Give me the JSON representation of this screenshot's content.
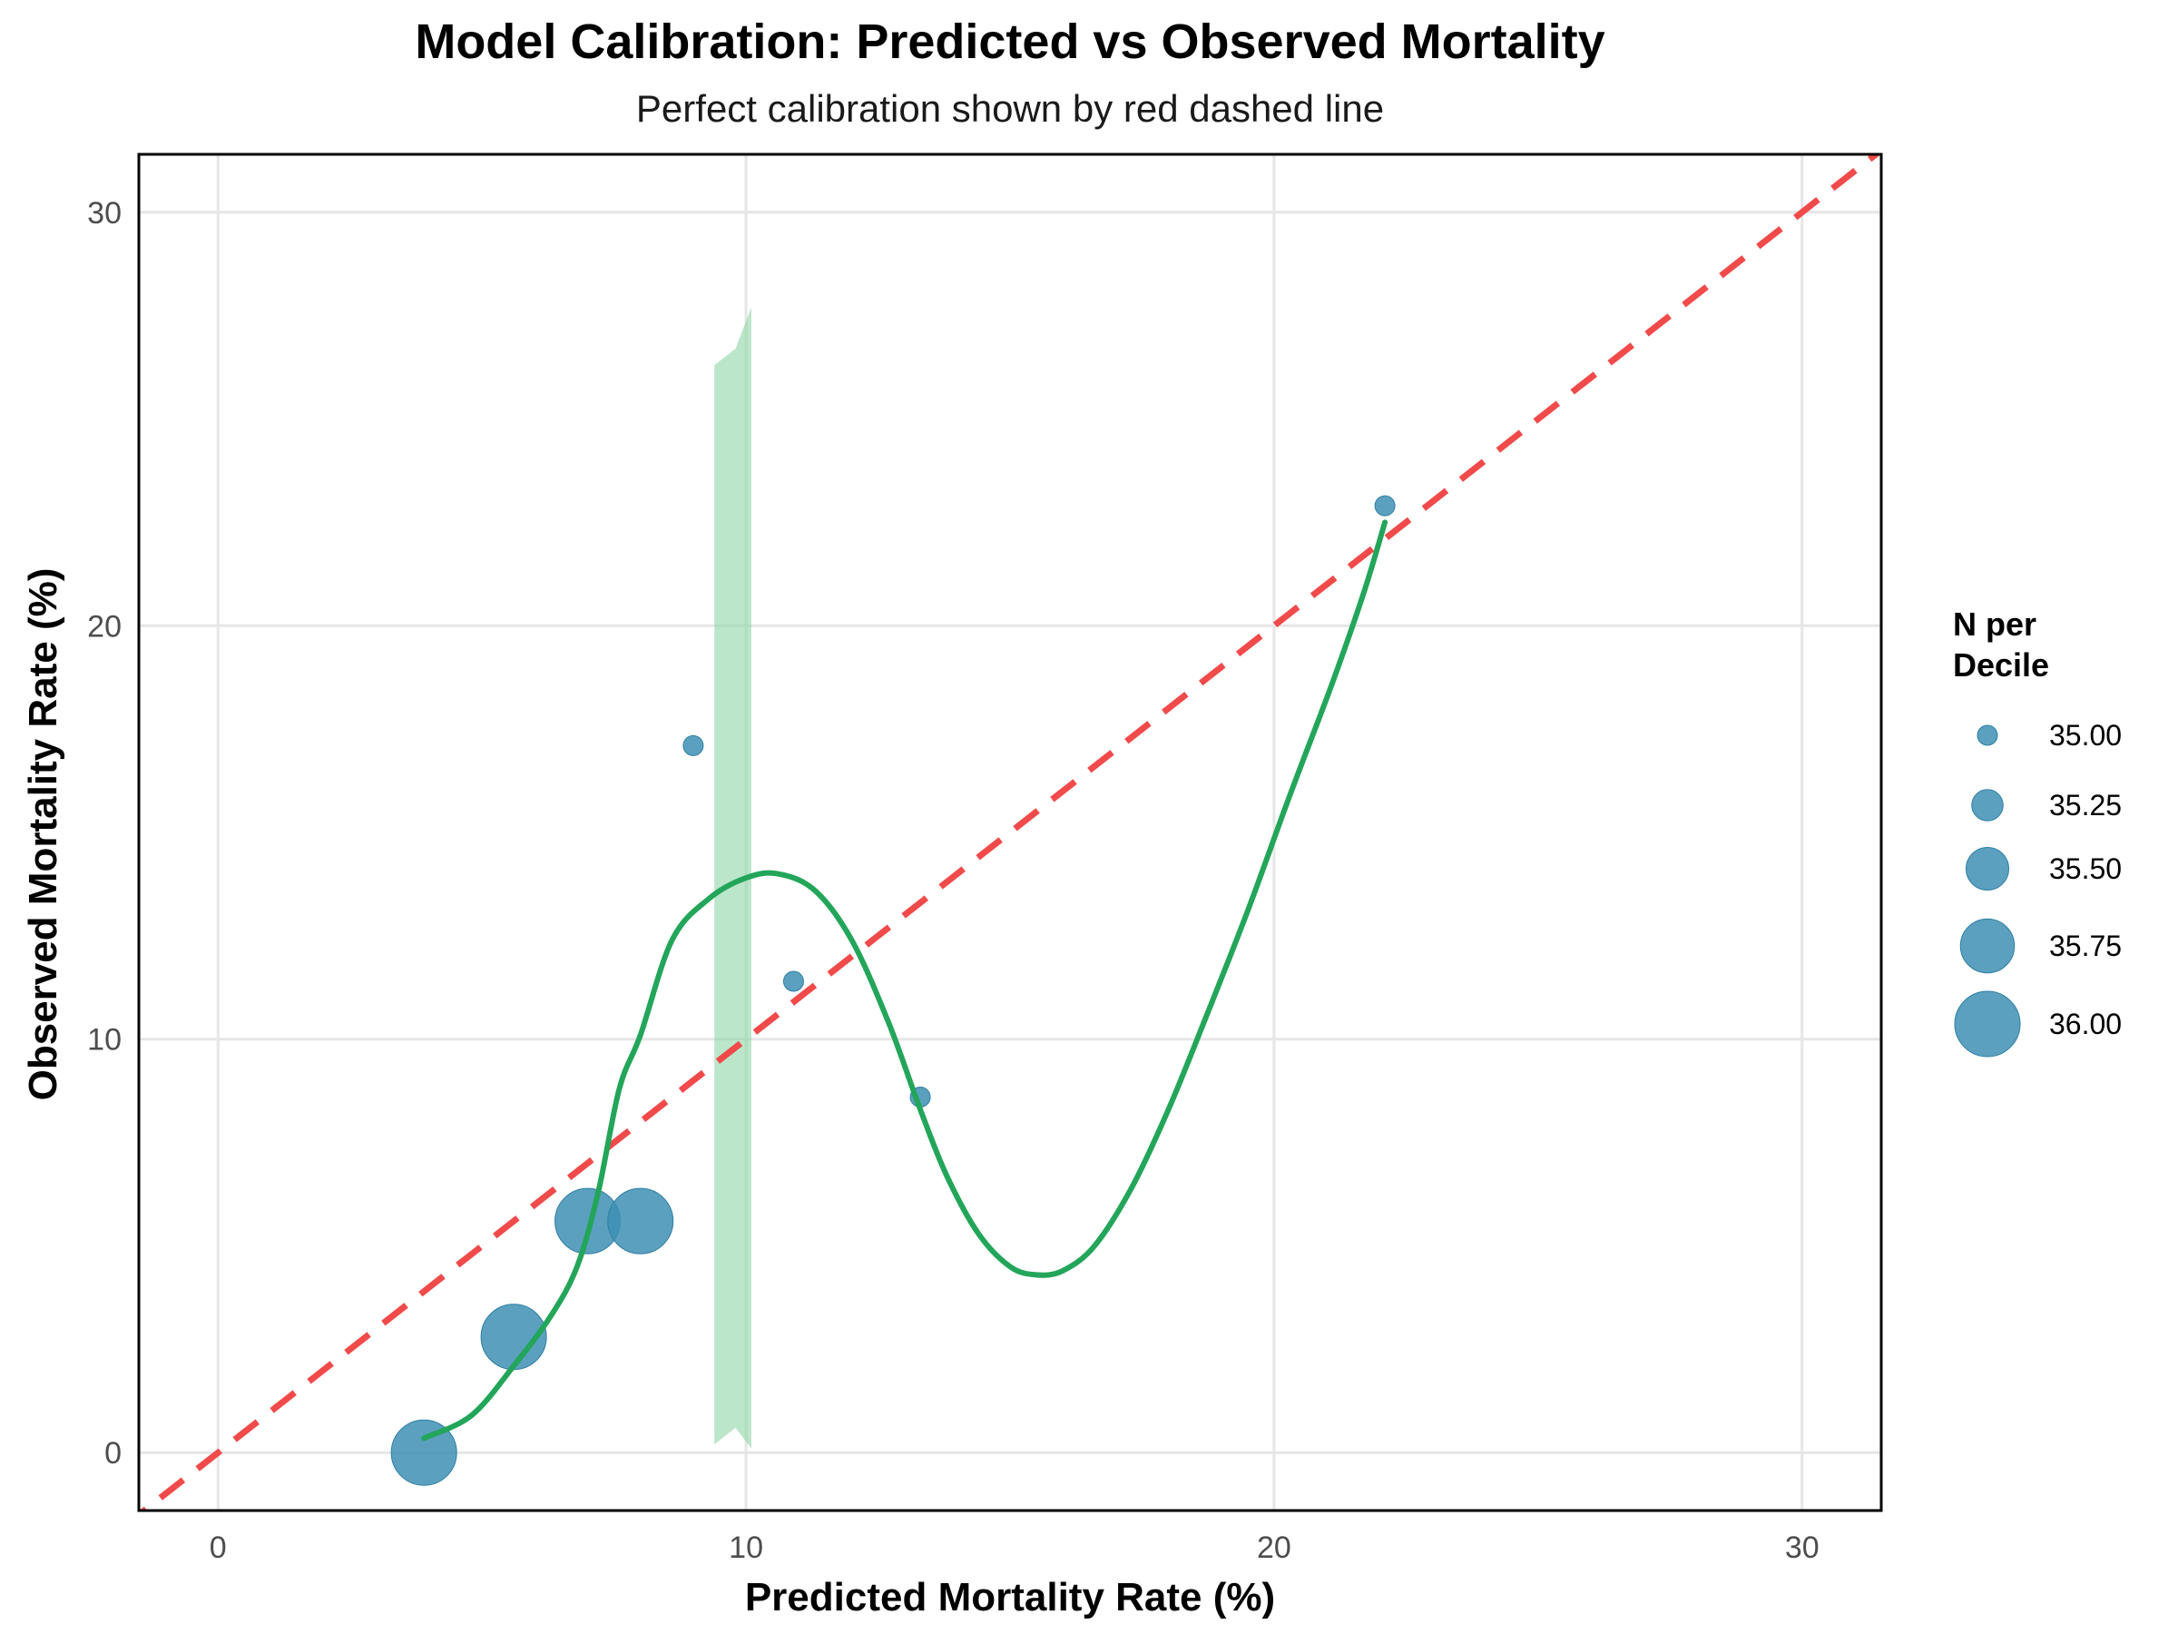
{
  "chart_data": {
    "type": "scatter",
    "title": "Model Calibration: Predicted vs Observed Mortality",
    "subtitle": "Perfect calibration shown by red dashed line",
    "xlabel": "Predicted Mortality Rate (%)",
    "ylabel": "Observed Mortality Rate (%)",
    "xlim": [
      -1.5,
      31.5
    ],
    "ylim": [
      -1.4,
      31.4
    ],
    "x_ticks": [
      0,
      10,
      20,
      30
    ],
    "y_ticks": [
      0,
      10,
      20,
      30
    ],
    "grid": true,
    "points": [
      {
        "x": 3.9,
        "y": 0.0,
        "n": 36
      },
      {
        "x": 5.6,
        "y": 2.8,
        "n": 36
      },
      {
        "x": 7.0,
        "y": 5.6,
        "n": 36
      },
      {
        "x": 8.0,
        "y": 5.6,
        "n": 36
      },
      {
        "x": 9.0,
        "y": 17.1,
        "n": 35
      },
      {
        "x": 10.9,
        "y": 11.4,
        "n": 35
      },
      {
        "x": 13.3,
        "y": 8.6,
        "n": 35
      },
      {
        "x": 22.1,
        "y": 22.9,
        "n": 35
      }
    ],
    "reference_line": {
      "type": "identity",
      "color": "#f04a4a",
      "style": "dashed"
    },
    "smooth_curve": {
      "color": "#23a55a",
      "points": [
        [
          3.9,
          0.35
        ],
        [
          4.8,
          0.9
        ],
        [
          5.6,
          2.1
        ],
        [
          6.3,
          3.3
        ],
        [
          6.8,
          4.5
        ],
        [
          7.2,
          6.3
        ],
        [
          7.6,
          8.8
        ],
        [
          8.0,
          10.1
        ],
        [
          8.6,
          12.4
        ],
        [
          9.3,
          13.4
        ],
        [
          10.0,
          13.9
        ],
        [
          10.6,
          14.0
        ],
        [
          11.3,
          13.6
        ],
        [
          12.0,
          12.4
        ],
        [
          12.7,
          10.4
        ],
        [
          13.3,
          8.3
        ],
        [
          13.8,
          6.7
        ],
        [
          14.4,
          5.3
        ],
        [
          15.0,
          4.5
        ],
        [
          15.5,
          4.3
        ],
        [
          16.0,
          4.4
        ],
        [
          16.6,
          5.0
        ],
        [
          17.3,
          6.4
        ],
        [
          18.0,
          8.3
        ],
        [
          18.7,
          10.5
        ],
        [
          19.5,
          13.1
        ],
        [
          20.3,
          15.9
        ],
        [
          21.1,
          18.6
        ],
        [
          21.7,
          20.8
        ],
        [
          22.1,
          22.5
        ]
      ]
    },
    "confidence_band": {
      "color": "#8fd5a6",
      "points": [
        [
          9.4,
          0.2,
          26.3
        ],
        [
          9.8,
          0.6,
          26.7
        ],
        [
          10.1,
          0.1,
          27.7
        ]
      ]
    },
    "point_color": "#3e8fb4",
    "legend": {
      "title_lines": [
        "N per",
        "Decile"
      ],
      "position": "right",
      "entries": [
        {
          "label": "35.00",
          "n": 35.0
        },
        {
          "label": "35.25",
          "n": 35.25
        },
        {
          "label": "35.50",
          "n": 35.5
        },
        {
          "label": "35.75",
          "n": 35.75
        },
        {
          "label": "36.00",
          "n": 36.0
        }
      ]
    }
  }
}
